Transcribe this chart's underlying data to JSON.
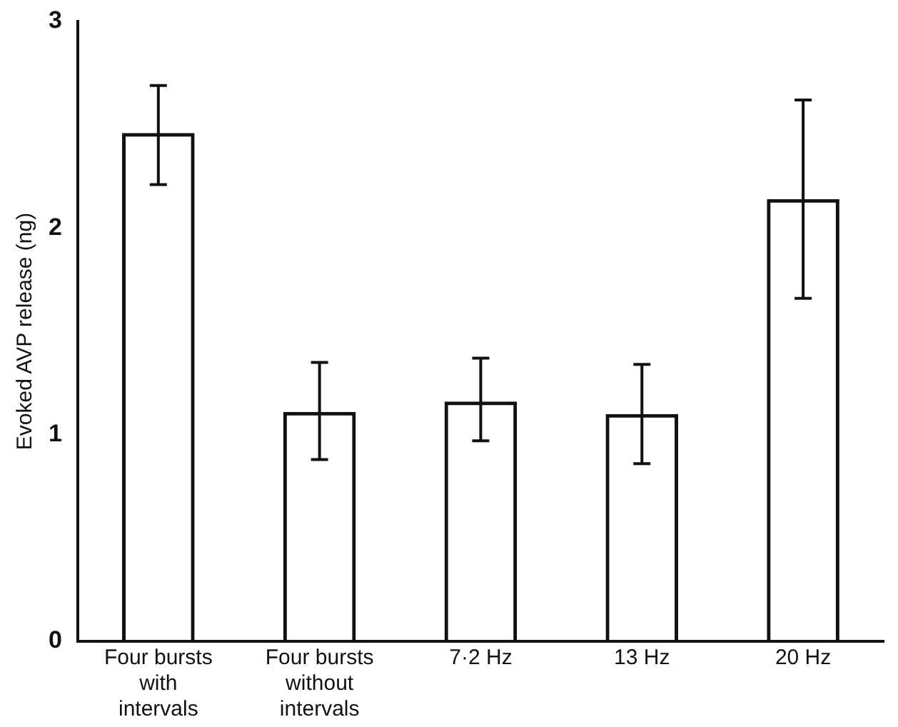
{
  "chart_data": {
    "type": "bar",
    "ylabel": "Evoked AVP release (ng)",
    "categories": [
      "Four bursts\nwith\nintervals",
      "Four bursts\nwithout\nintervals",
      "7·2 Hz",
      "13 Hz",
      "20 Hz"
    ],
    "values": [
      2.46,
      1.11,
      1.16,
      1.1,
      2.14
    ],
    "errors": [
      [
        2.21,
        2.69
      ],
      [
        0.88,
        1.35
      ],
      [
        0.97,
        1.37
      ],
      [
        0.86,
        1.34
      ],
      [
        1.66,
        2.62
      ]
    ],
    "color": "#111111",
    "ylim": [
      0,
      3
    ],
    "yticks": [
      0,
      1,
      2,
      3
    ],
    "grid": false,
    "legend": false
  }
}
